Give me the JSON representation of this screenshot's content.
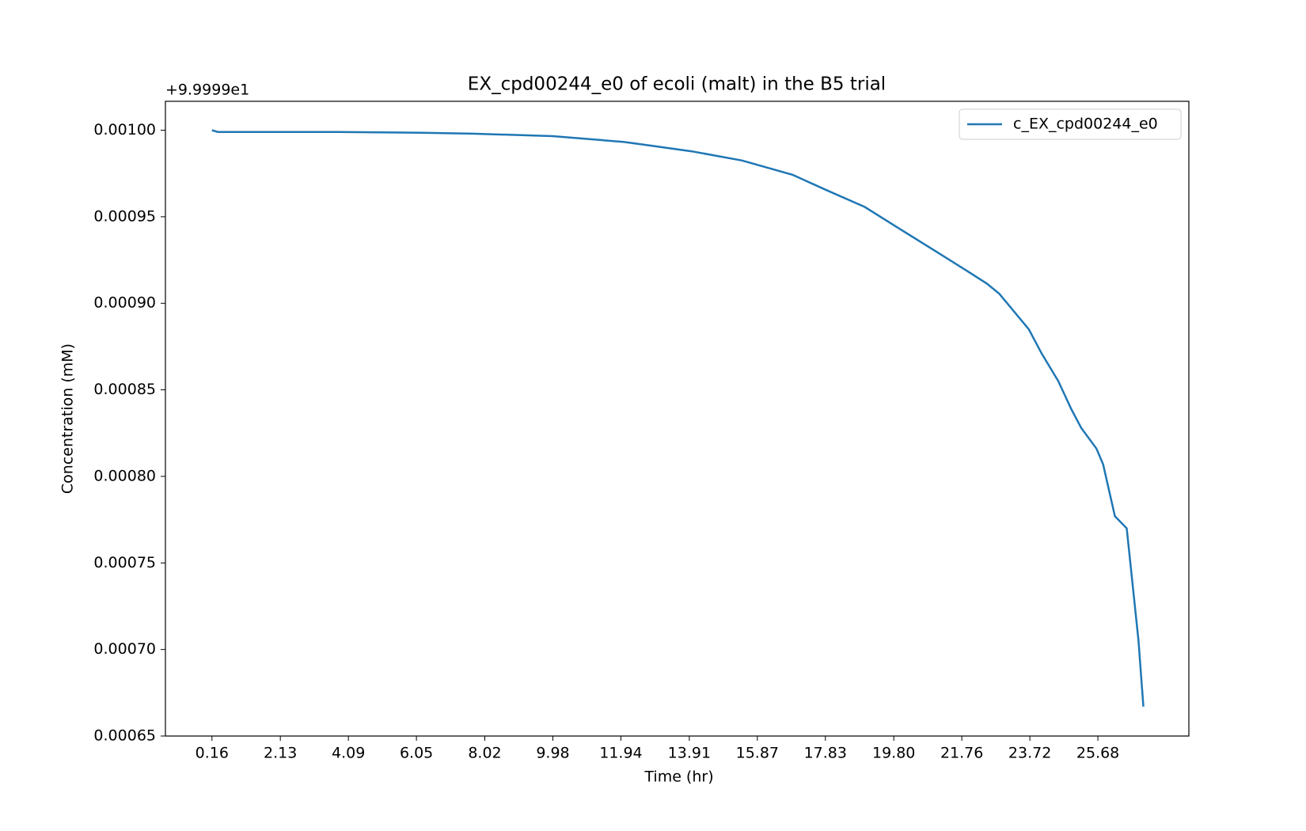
{
  "chart_data": {
    "type": "line",
    "title": "EX_cpd00244_e0 of ecoli (malt) in the B5 trial",
    "x_label": "Time (hr)",
    "y_label": "Concentration (mM)",
    "y_offset_text": "+9.9999e1",
    "x": [
      0.16,
      0.33,
      3.78,
      6.21,
      7.66,
      9.97,
      12.03,
      12.76,
      13.98,
      15.43,
      16.89,
      17.86,
      18.96,
      19.93,
      21.02,
      21.87,
      22.48,
      22.84,
      23.69,
      24.06,
      24.54,
      24.91,
      25.2,
      25.64,
      25.83,
      26.17,
      26.51,
      26.85,
      26.99
    ],
    "series": [
      {
        "name": "c_EX_cpd00244_e0",
        "color": "#1f77b4",
        "values": [
          0.001,
          0.000999,
          0.000999,
          0.0009985,
          0.000998,
          0.0009966,
          0.0009932,
          0.0009912,
          0.0009878,
          0.0009825,
          0.0009742,
          0.0009654,
          0.0009557,
          0.0009435,
          0.0009299,
          0.0009192,
          0.0009114,
          0.0009055,
          0.000885,
          0.000871,
          0.000855,
          0.000839,
          0.000828,
          0.000816,
          0.000807,
          0.000777,
          0.00077,
          0.000705,
          0.000667
        ]
      }
    ],
    "xlim": [
      -1.18,
      28.3
    ],
    "xticks": [
      0.16,
      2.13,
      4.09,
      6.05,
      8.02,
      9.98,
      11.94,
      13.91,
      15.87,
      17.83,
      19.8,
      21.76,
      23.72,
      25.68
    ],
    "ylim": [
      0.00065,
      0.0010167
    ],
    "yticks": [
      {
        "value": 0.00065,
        "label": "0.00065"
      },
      {
        "value": 0.0007,
        "label": "0.00070"
      },
      {
        "value": 0.00075,
        "label": "0.00075"
      },
      {
        "value": 0.0008,
        "label": "0.00080"
      },
      {
        "value": 0.00085,
        "label": "0.00085"
      },
      {
        "value": 0.0009,
        "label": "0.00090"
      },
      {
        "value": 0.00095,
        "label": "0.00095"
      },
      {
        "value": 0.001,
        "label": "0.00100"
      }
    ],
    "xtick_labels": [
      "0.16",
      "2.13",
      "4.09",
      "6.05",
      "8.02",
      "9.98",
      "11.94",
      "13.91",
      "15.87",
      "17.83",
      "19.80",
      "21.76",
      "23.72",
      "25.68"
    ],
    "legend": "upper right",
    "grid": false
  }
}
